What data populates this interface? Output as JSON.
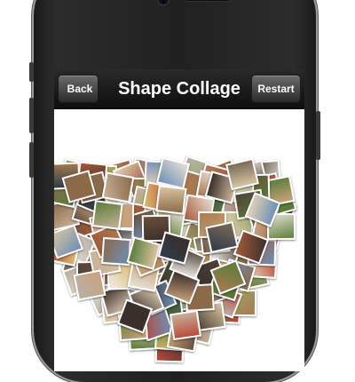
{
  "nav": {
    "back_label": "Back",
    "title": "Shape Collage",
    "restart_label": "Restart"
  },
  "collage": {
    "shape": "heart",
    "photo_colors": [
      "#8b6a4a",
      "#d8c4a0",
      "#5a7d3a",
      "#c9a27a",
      "#f0ece6",
      "#3b2f2a",
      "#a8794f",
      "#b94a3a",
      "#6e8fb5",
      "#e3d2b8",
      "#7a6a58",
      "#c7b096",
      "#4d4338",
      "#9aa86a",
      "#e8e0d4",
      "#a55a3c",
      "#2f3b4a",
      "#d9b86a",
      "#b8b0a4",
      "#6a4e3a"
    ]
  }
}
